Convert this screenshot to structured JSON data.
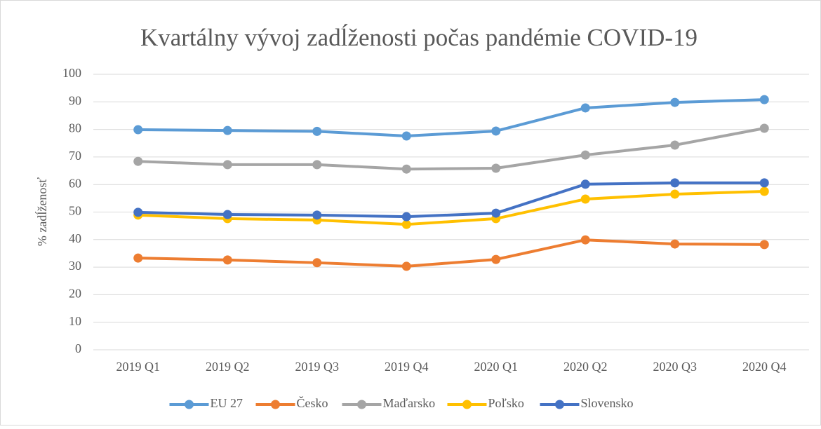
{
  "chart_data": {
    "type": "line",
    "title": "Kvartálny vývoj zadĺženosti počas pandémie COVID-19",
    "y_label": "% zadĺženosť",
    "categories": [
      "2019 Q1",
      "2019 Q2",
      "2019 Q3",
      "2019 Q4",
      "2020 Q1",
      "2020 Q2",
      "2020 Q3",
      "2020 Q4"
    ],
    "series": [
      {
        "name": "EU 27",
        "color": "#5b9bd5",
        "values": [
          79.9,
          79.6,
          79.3,
          77.6,
          79.4,
          87.8,
          89.8,
          90.8
        ]
      },
      {
        "name": "Česko",
        "color": "#ed7d31",
        "values": [
          33.3,
          32.6,
          31.6,
          30.3,
          32.8,
          39.9,
          38.4,
          38.2
        ]
      },
      {
        "name": "Maďarsko",
        "color": "#a5a5a5",
        "values": [
          68.4,
          67.2,
          67.2,
          65.6,
          65.9,
          70.7,
          74.3,
          80.4
        ]
      },
      {
        "name": "Poľsko",
        "color": "#ffc000",
        "values": [
          48.9,
          47.6,
          47.1,
          45.5,
          47.6,
          54.7,
          56.5,
          57.5
        ]
      },
      {
        "name": "Slovensko",
        "color": "#4472c4",
        "values": [
          49.9,
          49.1,
          48.9,
          48.3,
          49.6,
          60.1,
          60.6,
          60.6
        ]
      }
    ],
    "ylim": [
      0,
      100
    ],
    "yticks": [
      0,
      10,
      20,
      30,
      40,
      50,
      60,
      70,
      80,
      90,
      100
    ],
    "grid": true,
    "legend": "bottom"
  }
}
